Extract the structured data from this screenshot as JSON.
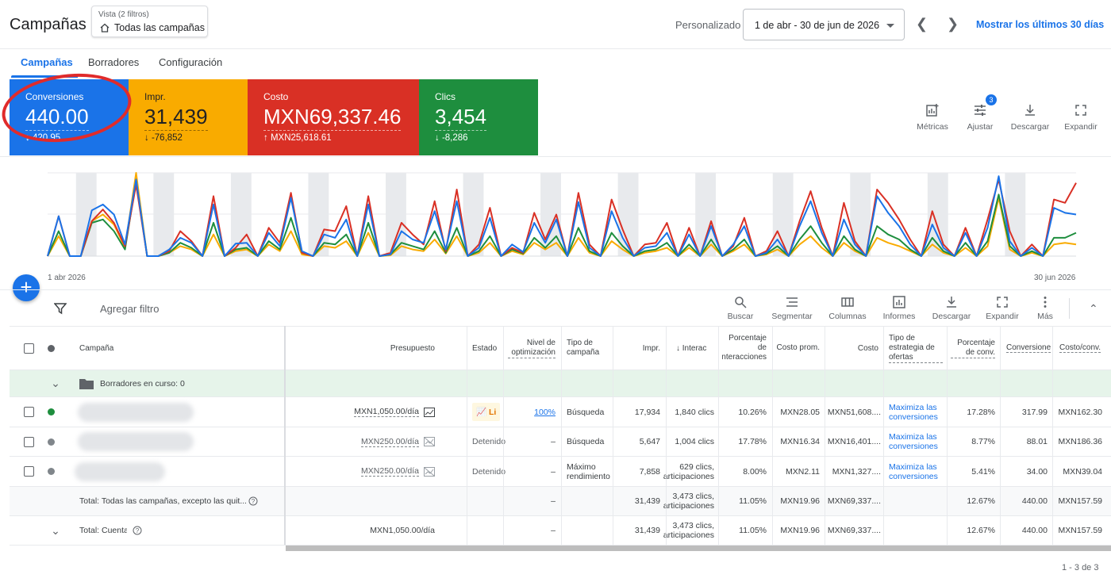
{
  "header": {
    "title": "Campañas",
    "view_small": "Vista (2 filtros)",
    "view_main": "Todas las campañas",
    "range_type": "Personalizado",
    "date_range": "1 de abr - 30 de jun de 2026",
    "prev": "❮",
    "next": "❯",
    "last30": "Mostrar los últimos 30 días"
  },
  "tabs": [
    "Campañas",
    "Borradores",
    "Configuración"
  ],
  "cards": [
    {
      "label": "Conversiones",
      "value": "440.00",
      "delta": "↓ 420.95",
      "color": "#1a73e8"
    },
    {
      "label": "Impr.",
      "value": "31,439",
      "delta": "↓ -76,852",
      "color": "#f9ab00"
    },
    {
      "label": "Costo",
      "value": "MXN69,337.46",
      "delta": "↑ MXN25,618.61",
      "color": "#d93025"
    },
    {
      "label": "Clics",
      "value": "3,454",
      "delta": "↓ -8,286",
      "color": "#1e8e3e"
    }
  ],
  "right_tools": [
    "Métricas",
    "Ajustar",
    "Descargar",
    "Expandir"
  ],
  "adjust_badge": "3",
  "chart_data": {
    "type": "line",
    "x_start_label": "1 abr 2026",
    "x_end_label": "30 jun 2026",
    "series": [
      {
        "color": "#1a73e8",
        "values": [
          0,
          48,
          0,
          0,
          55,
          62,
          50,
          14,
          92,
          0,
          0,
          8,
          22,
          16,
          0,
          62,
          0,
          15,
          16,
          0,
          28,
          12,
          70,
          6,
          0,
          26,
          22,
          44,
          0,
          62,
          0,
          2,
          30,
          20,
          16,
          54,
          8,
          66,
          0,
          10,
          46,
          0,
          14,
          5,
          40,
          16,
          44,
          0,
          65,
          10,
          0,
          54,
          22,
          0,
          10,
          12,
          28,
          0,
          26,
          0,
          36,
          0,
          14,
          36,
          0,
          4,
          20,
          0,
          36,
          66,
          28,
          0,
          44,
          14,
          0,
          72,
          52,
          36,
          14,
          0,
          38,
          10,
          0,
          28,
          0,
          34,
          96,
          18,
          0,
          10,
          0,
          58,
          52,
          50
        ]
      },
      {
        "color": "#d93025",
        "values": [
          0,
          48,
          0,
          0,
          42,
          56,
          40,
          12,
          86,
          0,
          0,
          6,
          30,
          18,
          0,
          72,
          0,
          10,
          26,
          0,
          34,
          16,
          76,
          4,
          0,
          32,
          30,
          60,
          0,
          72,
          0,
          4,
          40,
          26,
          14,
          66,
          6,
          80,
          0,
          14,
          58,
          0,
          10,
          4,
          52,
          20,
          50,
          0,
          76,
          14,
          0,
          68,
          32,
          0,
          14,
          16,
          40,
          0,
          34,
          0,
          42,
          0,
          12,
          46,
          0,
          6,
          30,
          0,
          42,
          78,
          34,
          0,
          64,
          18,
          0,
          80,
          64,
          44,
          20,
          0,
          54,
          14,
          0,
          34,
          0,
          44,
          92,
          30,
          0,
          14,
          0,
          68,
          64,
          88
        ]
      },
      {
        "color": "#1e8e3e",
        "values": [
          0,
          30,
          0,
          0,
          40,
          44,
          30,
          8,
          90,
          0,
          0,
          4,
          16,
          10,
          0,
          40,
          0,
          8,
          10,
          0,
          18,
          8,
          46,
          4,
          0,
          16,
          14,
          26,
          0,
          40,
          0,
          2,
          16,
          12,
          8,
          30,
          4,
          34,
          0,
          6,
          24,
          0,
          8,
          3,
          22,
          10,
          24,
          0,
          34,
          6,
          0,
          28,
          12,
          0,
          6,
          8,
          16,
          0,
          14,
          0,
          20,
          0,
          8,
          20,
          0,
          3,
          12,
          0,
          20,
          36,
          16,
          0,
          24,
          8,
          0,
          36,
          26,
          20,
          8,
          0,
          22,
          6,
          0,
          16,
          0,
          18,
          74,
          12,
          0,
          6,
          0,
          22,
          22,
          28
        ]
      },
      {
        "color": "#f9ab00",
        "values": [
          0,
          24,
          0,
          0,
          42,
          50,
          38,
          10,
          100,
          0,
          0,
          4,
          12,
          8,
          0,
          26,
          0,
          6,
          8,
          0,
          14,
          6,
          30,
          2,
          0,
          12,
          10,
          18,
          0,
          28,
          0,
          1,
          12,
          8,
          6,
          20,
          3,
          24,
          0,
          4,
          16,
          0,
          6,
          2,
          16,
          8,
          16,
          0,
          22,
          4,
          0,
          18,
          8,
          0,
          4,
          6,
          10,
          0,
          10,
          0,
          14,
          0,
          6,
          14,
          0,
          2,
          8,
          0,
          14,
          24,
          10,
          0,
          16,
          6,
          0,
          22,
          16,
          12,
          6,
          0,
          14,
          4,
          0,
          10,
          0,
          12,
          70,
          8,
          0,
          4,
          0,
          14,
          16,
          14
        ]
      }
    ]
  },
  "toolbar": {
    "add_filter": "Agregar filtro",
    "tools": [
      "Buscar",
      "Segmentar",
      "Columnas",
      "Informes",
      "Descargar",
      "Expandir",
      "Más"
    ]
  },
  "table": {
    "headers": {
      "campaign": "Campaña",
      "budget": "Presupuesto",
      "status": "Estado",
      "opt": "Nivel de optimización",
      "type": "Tipo de campaña",
      "impr": "Impr.",
      "inter": "↓ Interac",
      "rate": "Porcentaje de interacciones",
      "avg_cost": "Costo prom.",
      "cost": "Costo",
      "bid": "Tipo de estrategia de ofertas",
      "conv_rate": "Porcentaje de conv.",
      "conv": "Conversiones",
      "cost_conv": "Costo/conv."
    },
    "drafts_label": "Borradores en curso: 0",
    "rows": [
      {
        "budget": "MXN1,050.00/día",
        "status": "Li",
        "opt": "100%",
        "type": "Búsqueda",
        "impr": "17,934",
        "inter": "1,840 clics",
        "rate": "10.26%",
        "avg_cost": "MXN28.05",
        "cost": "MXN51,608....",
        "bid": "Maximiza las conversiones",
        "conv_rate": "17.28%",
        "conv": "317.99",
        "cost_conv": "MXN162.30",
        "dot": "#1e8e3e"
      },
      {
        "budget": "MXN250.00/día",
        "status": "Detenido",
        "opt": "–",
        "type": "Búsqueda",
        "impr": "5,647",
        "inter": "1,004 clics",
        "rate": "17.78%",
        "avg_cost": "MXN16.34",
        "cost": "MXN16,401....",
        "bid": "Maximiza las conversiones",
        "conv_rate": "8.77%",
        "conv": "88.01",
        "cost_conv": "MXN186.36",
        "dot": "#80868b"
      },
      {
        "budget": "MXN250.00/día",
        "status": "Detenido",
        "opt": "–",
        "type": "Máximo rendimiento",
        "impr": "7,858",
        "inter": "629 clics, articipaciones",
        "rate": "8.00%",
        "avg_cost": "MXN2.11",
        "cost": "MXN1,327....",
        "bid": "Maximiza las conversiones",
        "conv_rate": "5.41%",
        "conv": "34.00",
        "cost_conv": "MXN39.04",
        "dot": "#80868b"
      }
    ],
    "total1": {
      "label": "Total: Todas las campañas, excepto las quit...",
      "opt": "–",
      "impr": "31,439",
      "inter": "3,473 clics, articipaciones",
      "rate": "11.05%",
      "avg_cost": "MXN19.96",
      "cost": "MXN69,337....",
      "conv_rate": "12.67%",
      "conv": "440.00",
      "cost_conv": "MXN157.59"
    },
    "total2": {
      "label": "Total: Cuenta",
      "budget": "MXN1,050.00/día",
      "opt": "–",
      "impr": "31,439",
      "inter": "3,473 clics, articipaciones",
      "rate": "11.05%",
      "avg_cost": "MXN19.96",
      "cost": "MXN69,337....",
      "conv_rate": "12.67%",
      "conv": "440.00",
      "cost_conv": "MXN157.59"
    }
  },
  "pager": "1 - 3 de 3"
}
